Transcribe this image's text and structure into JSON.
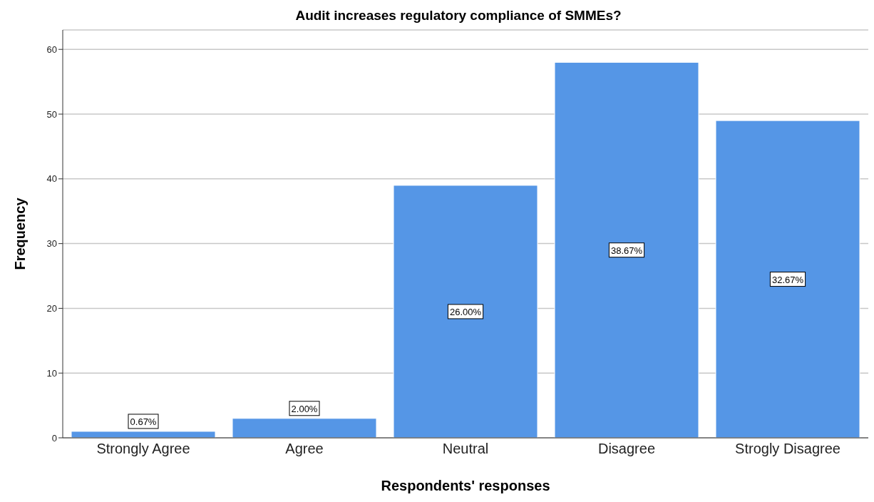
{
  "chart_data": {
    "type": "bar",
    "title": "Audit increases regulatory compliance of SMMEs?",
    "xlabel": "Respondents' responses",
    "ylabel": "Frequency",
    "categories": [
      "Strongly Agree",
      "Agree",
      "Neutral",
      "Disagree",
      "Strogly Disagree"
    ],
    "values": [
      1,
      3,
      39,
      58,
      49
    ],
    "annotations": [
      "0.67%",
      "2.00%",
      "26.00%",
      "38.67%",
      "32.67%"
    ],
    "color": "#5596e6",
    "ylim": [
      0,
      63
    ],
    "yticks": [
      0,
      10,
      20,
      30,
      40,
      50,
      60
    ],
    "grid": "y"
  }
}
